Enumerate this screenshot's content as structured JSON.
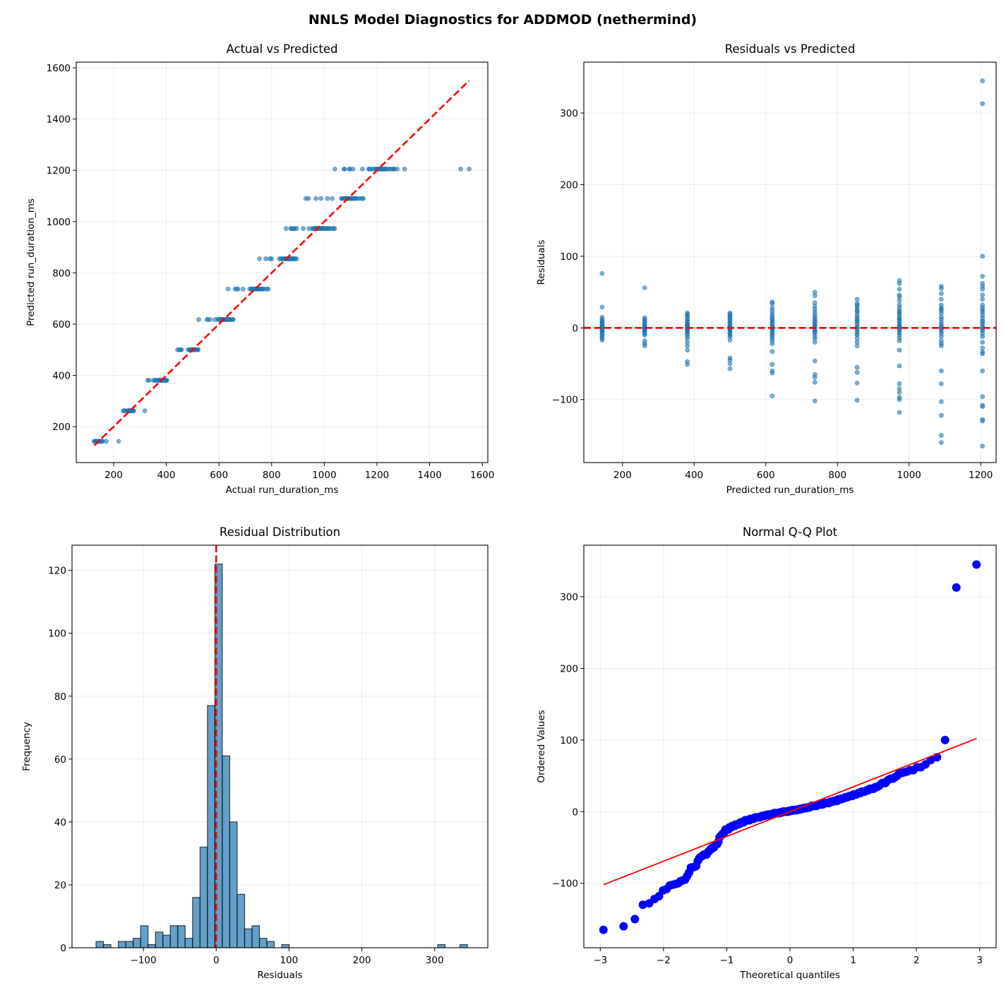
{
  "suptitle": "NNLS Model Diagnostics for ADDMOD (nethermind)",
  "colors": {
    "points": "#1f77b4",
    "reference": "#ff0000",
    "qq_points": "#0000ff",
    "grid": "#b0b0b0"
  },
  "chart_data": [
    {
      "id": "actual_vs_predicted",
      "type": "scatter",
      "title": "Actual vs Predicted",
      "xlabel": "Actual run_duration_ms",
      "ylabel": "Predicted run_duration_ms",
      "xlim": [
        58,
        1621
      ],
      "ylim": [
        60,
        1622
      ],
      "xticks": [
        200,
        400,
        600,
        800,
        1000,
        1200,
        1400,
        1600
      ],
      "yticks": [
        200,
        400,
        600,
        800,
        1000,
        1200,
        1400,
        1600
      ],
      "grid": true,
      "reference_line": {
        "style": "dashed",
        "from": [
          127,
          127
        ],
        "to": [
          1550,
          1550
        ]
      },
      "points_source": "residual_groups: actual = predicted + residual"
    },
    {
      "id": "residuals_vs_predicted",
      "type": "scatter",
      "title": "Residuals vs Predicted",
      "xlabel": "Predicted run_duration_ms",
      "ylabel": "Residuals",
      "xlim": [
        92,
        1243
      ],
      "ylim": [
        -188,
        371
      ],
      "xticks": [
        200,
        400,
        600,
        800,
        1000,
        1200
      ],
      "yticks": [
        -100,
        0,
        100,
        200,
        300
      ],
      "grid": true,
      "reference_line": {
        "style": "dashed",
        "y": 0
      },
      "residual_groups": [
        {
          "predicted": 143,
          "residuals": [
            76,
            29,
            15,
            12,
            10,
            8,
            7,
            5,
            4,
            3,
            2,
            1,
            0,
            -1,
            -2,
            -3,
            -4,
            -5,
            -6,
            -8,
            -10,
            -12,
            -15,
            -17
          ]
        },
        {
          "predicted": 262,
          "residuals": [
            56,
            14,
            12,
            10,
            8,
            6,
            4,
            3,
            2,
            1,
            0,
            -1,
            -2,
            -3,
            -4,
            -6,
            -8,
            -10,
            -18,
            -22,
            -25
          ]
        },
        {
          "predicted": 381,
          "residuals": [
            21,
            19,
            17,
            15,
            12,
            10,
            8,
            6,
            5,
            4,
            3,
            2,
            1,
            0,
            -1,
            -2,
            -3,
            -5,
            -7,
            -9,
            -12,
            -15,
            -20,
            -25,
            -31,
            -47,
            -51
          ]
        },
        {
          "predicted": 500,
          "residuals": [
            21,
            19,
            17,
            15,
            13,
            11,
            9,
            7,
            5,
            3,
            2,
            1,
            0,
            -1,
            -2,
            -4,
            -6,
            -8,
            -10,
            -12,
            -17,
            -42,
            -45,
            -50,
            -57
          ]
        },
        {
          "predicted": 618,
          "residuals": [
            36,
            34,
            28,
            24,
            20,
            17,
            14,
            12,
            10,
            8,
            6,
            4,
            2,
            0,
            -2,
            -4,
            -6,
            -8,
            -10,
            -12,
            -15,
            -18,
            -22,
            -33,
            -51,
            -60,
            -63,
            -95
          ]
        },
        {
          "predicted": 737,
          "residuals": [
            50,
            45,
            35,
            30,
            26,
            22,
            18,
            15,
            12,
            10,
            8,
            6,
            4,
            2,
            0,
            -2,
            -4,
            -6,
            -8,
            -12,
            -15,
            -20,
            -46,
            -65,
            -69,
            -76,
            -102
          ]
        },
        {
          "predicted": 855,
          "residuals": [
            40,
            34,
            32,
            30,
            26,
            24,
            22,
            18,
            15,
            12,
            10,
            8,
            5,
            2,
            0,
            -2,
            -5,
            -8,
            -10,
            -15,
            -20,
            -25,
            -55,
            -62,
            -77,
            -101
          ]
        },
        {
          "predicted": 973,
          "residuals": [
            66,
            62,
            54,
            46,
            43,
            38,
            32,
            28,
            24,
            22,
            20,
            17,
            14,
            12,
            10,
            8,
            5,
            3,
            1,
            0,
            -2,
            -4,
            -7,
            -10,
            -14,
            -18,
            -31,
            -53,
            -78,
            -85,
            -90,
            -97,
            -100,
            -118
          ]
        },
        {
          "predicted": 1090,
          "residuals": [
            58,
            55,
            48,
            40,
            32,
            28,
            26,
            24,
            20,
            15,
            12,
            8,
            5,
            2,
            0,
            -2,
            -5,
            -8,
            -12,
            -18,
            -22,
            -25,
            -60,
            -78,
            -103,
            -122,
            -150,
            -160
          ]
        },
        {
          "predicted": 1205,
          "residuals": [
            345,
            313,
            100,
            72,
            62,
            58,
            54,
            46,
            40,
            32,
            28,
            25,
            22,
            18,
            14,
            10,
            8,
            5,
            2,
            0,
            -2,
            -4,
            -8,
            -12,
            -20,
            -28,
            -34,
            -36,
            -60,
            -96,
            -108,
            -110,
            -128,
            -130,
            -165
          ]
        }
      ]
    },
    {
      "id": "residual_distribution",
      "type": "bar",
      "title": "Residual Distribution",
      "xlabel": "Residuals",
      "ylabel": "Frequency",
      "xlim": [
        -198,
        373
      ],
      "ylim": [
        0,
        128
      ],
      "xticks": [
        -100,
        0,
        100,
        200,
        300
      ],
      "yticks": [
        0,
        20,
        40,
        60,
        80,
        100,
        120
      ],
      "grid": true,
      "bin_start": -165,
      "bin_width": 10.2,
      "counts": [
        2,
        1,
        0,
        2,
        2,
        3,
        7,
        1,
        5,
        4,
        7,
        7,
        3,
        16,
        32,
        77,
        122,
        61,
        40,
        17,
        6,
        7,
        3,
        2,
        0,
        1,
        0,
        0,
        0,
        0,
        0,
        0,
        0,
        0,
        0,
        0,
        0,
        0,
        0,
        0,
        0,
        0,
        0,
        0,
        0,
        0,
        1,
        0,
        0,
        1
      ],
      "reference_line": {
        "style": "dashed",
        "x": 0
      }
    },
    {
      "id": "normal_qq",
      "type": "scatter",
      "title": "Normal Q-Q Plot",
      "xlabel": "Theoretical quantiles",
      "ylabel": "Ordered Values",
      "xlim": [
        -3.26,
        3.26
      ],
      "ylim": [
        -190,
        372
      ],
      "xticks": [
        -3,
        -2,
        -1,
        0,
        1,
        2,
        3
      ],
      "yticks": [
        -100,
        0,
        100,
        200,
        300
      ],
      "grid": true,
      "fit_line": {
        "slope": 34.6,
        "intercept": 0
      }
    }
  ]
}
